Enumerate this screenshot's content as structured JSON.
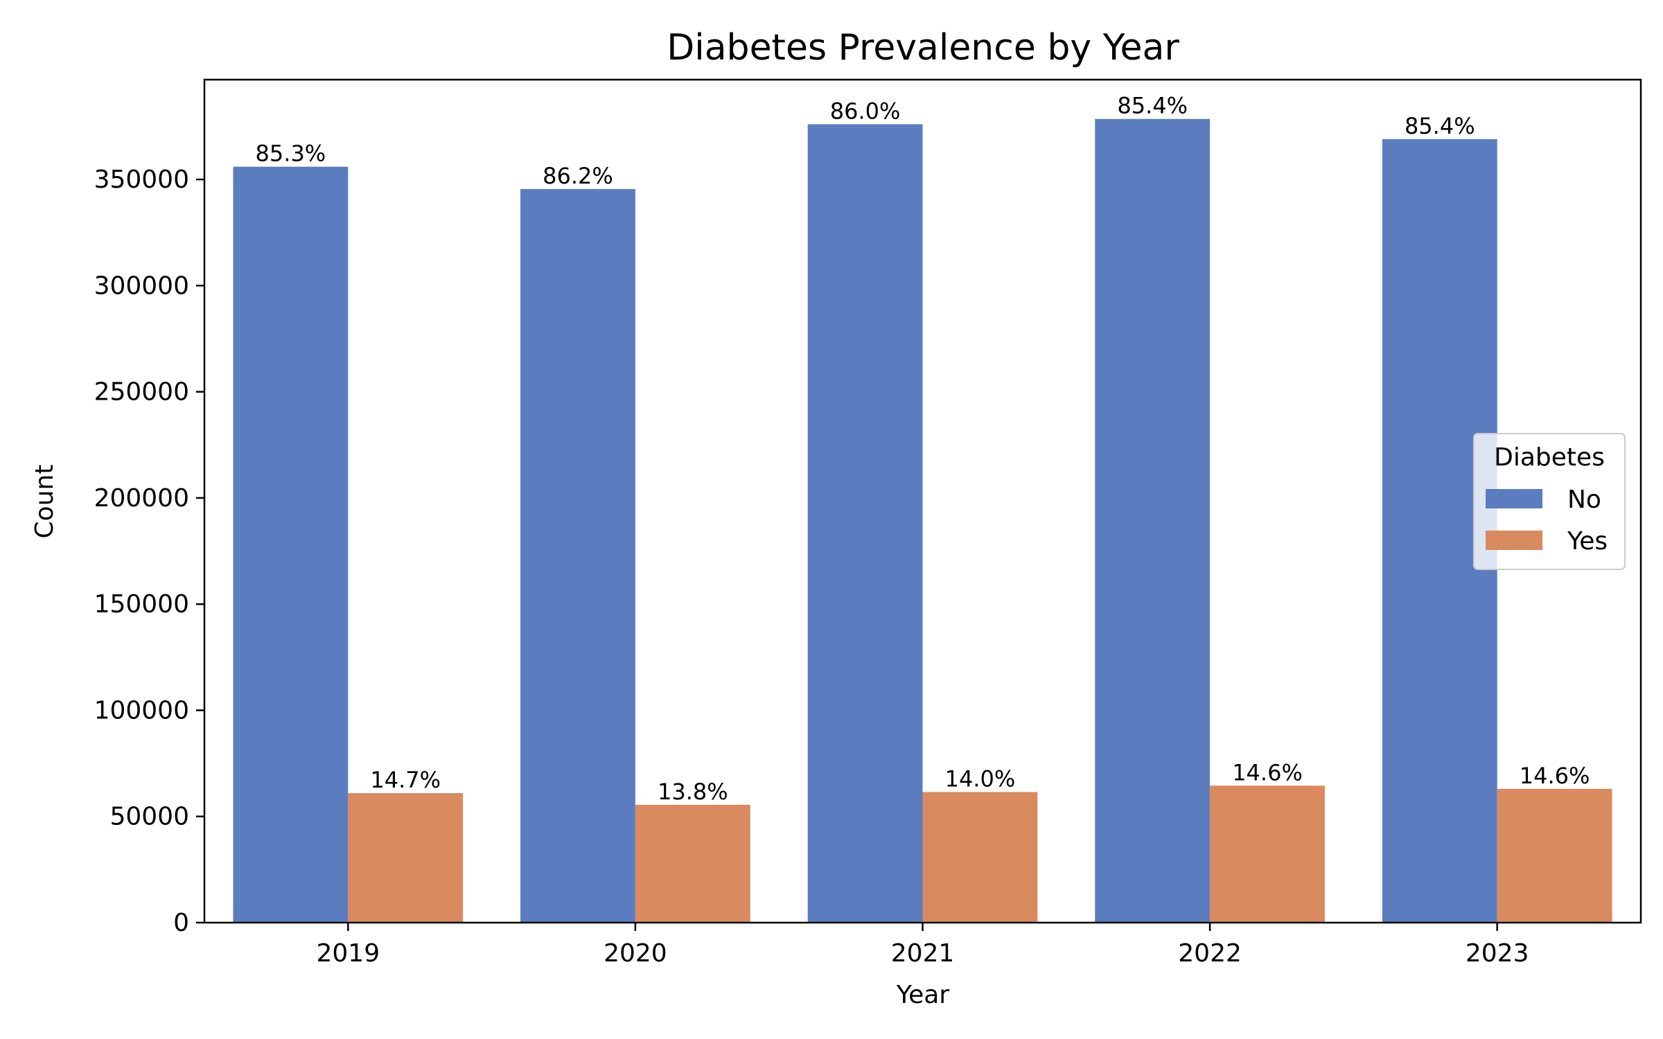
{
  "chart_data": {
    "type": "bar",
    "title": "Diabetes Prevalence by Year",
    "xlabel": "Year",
    "ylabel": "Count",
    "categories": [
      "2019",
      "2020",
      "2021",
      "2022",
      "2023"
    ],
    "ylim": [
      0,
      397000
    ],
    "yticks": [
      0,
      50000,
      100000,
      150000,
      200000,
      250000,
      300000,
      350000
    ],
    "ytick_labels": [
      "0",
      "50000",
      "100000",
      "150000",
      "200000",
      "250000",
      "300000",
      "350000"
    ],
    "grid": false,
    "legend": {
      "title": "Diabetes",
      "placement": "center-right"
    },
    "series": [
      {
        "name": "No",
        "color": "#5b7dbf",
        "values": [
          356000,
          345500,
          376000,
          378500,
          369000
        ],
        "labels": [
          "85.3%",
          "86.2%",
          "86.0%",
          "85.4%",
          "85.4%"
        ]
      },
      {
        "name": "Yes",
        "color": "#d98a5f",
        "values": [
          61000,
          55500,
          61500,
          64500,
          63000
        ],
        "labels": [
          "14.7%",
          "13.8%",
          "14.0%",
          "14.6%",
          "14.6%"
        ]
      }
    ]
  }
}
